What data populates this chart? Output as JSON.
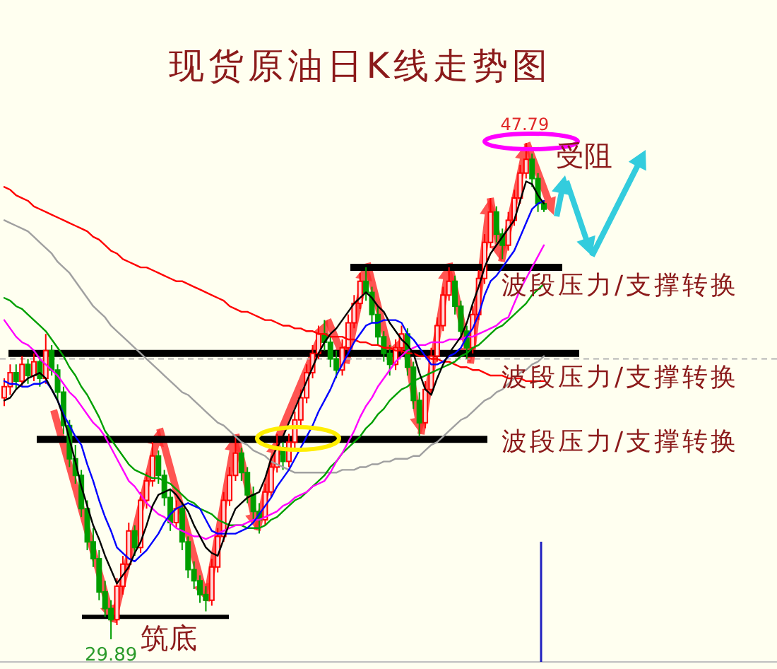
{
  "chart_data": {
    "type": "candlestick",
    "title": "现货原油日K线走势图",
    "tick_labels": false,
    "categories": [
      null,
      null,
      null,
      null,
      null,
      null,
      null,
      null,
      null,
      null,
      null,
      null,
      null,
      null,
      null,
      null,
      null,
      null,
      null,
      null,
      null,
      null,
      null,
      null,
      null,
      null,
      null,
      null,
      null,
      null,
      null,
      null,
      null,
      null,
      null,
      null,
      null,
      null,
      null,
      null,
      null,
      null,
      null,
      null,
      null,
      null,
      null,
      null,
      null,
      null,
      null,
      null,
      null,
      null,
      null,
      null,
      null,
      null,
      null,
      null,
      null,
      null,
      null,
      null,
      null,
      null,
      null,
      null,
      null,
      null,
      null,
      null,
      null,
      null,
      null,
      null,
      null,
      null,
      null,
      null,
      null,
      null,
      null,
      null,
      null,
      null,
      null,
      null,
      null,
      null,
      null,
      null
    ],
    "ohlc": [
      [
        38.6,
        39.3,
        38.3,
        39.0
      ],
      [
        39.0,
        39.8,
        38.7,
        39.5
      ],
      [
        39.5,
        39.8,
        38.9,
        39.2
      ],
      [
        39.2,
        40.1,
        39.0,
        39.8
      ],
      [
        39.8,
        40.0,
        39.1,
        39.4
      ],
      [
        39.4,
        40.2,
        39.2,
        39.9
      ],
      [
        39.9,
        40.1,
        39.0,
        39.3
      ],
      [
        39.3,
        40.9,
        39.1,
        40.3
      ],
      [
        40.3,
        40.5,
        39.4,
        39.6
      ],
      [
        39.6,
        39.8,
        38.5,
        38.8
      ],
      [
        38.8,
        39.0,
        37.3,
        37.6
      ],
      [
        37.6,
        37.8,
        36.1,
        36.4
      ],
      [
        36.4,
        36.9,
        35.5,
        35.8
      ],
      [
        35.8,
        36.0,
        34.3,
        34.6
      ],
      [
        34.6,
        34.9,
        33.1,
        33.4
      ],
      [
        33.4,
        33.9,
        32.5,
        32.8
      ],
      [
        32.8,
        33.1,
        31.3,
        31.6
      ],
      [
        31.6,
        32.0,
        30.7,
        31.0
      ],
      [
        31.0,
        31.3,
        29.89,
        30.6
      ],
      [
        30.6,
        32.1,
        30.4,
        31.8
      ],
      [
        31.8,
        32.9,
        31.5,
        32.6
      ],
      [
        32.6,
        34.1,
        32.4,
        33.8
      ],
      [
        33.8,
        34.0,
        32.9,
        33.2
      ],
      [
        33.2,
        35.2,
        33.0,
        34.9
      ],
      [
        34.9,
        35.9,
        34.6,
        35.6
      ],
      [
        35.6,
        37.0,
        35.4,
        36.5
      ],
      [
        36.5,
        36.7,
        35.5,
        35.8
      ],
      [
        35.8,
        36.0,
        34.7,
        35.0
      ],
      [
        35.0,
        35.3,
        33.8,
        34.1
      ],
      [
        34.1,
        34.9,
        33.9,
        34.6
      ],
      [
        34.6,
        34.8,
        33.1,
        33.4
      ],
      [
        33.4,
        33.6,
        32.1,
        32.4
      ],
      [
        32.4,
        32.7,
        31.7,
        32.0
      ],
      [
        32.0,
        32.2,
        31.2,
        31.5
      ],
      [
        31.5,
        31.8,
        30.9,
        31.3
      ],
      [
        31.3,
        32.8,
        31.1,
        32.5
      ],
      [
        32.5,
        33.9,
        32.3,
        33.6
      ],
      [
        33.6,
        35.2,
        33.4,
        34.9
      ],
      [
        34.9,
        36.1,
        34.7,
        35.8
      ],
      [
        35.8,
        37.2,
        35.6,
        36.6
      ],
      [
        36.6,
        36.8,
        35.6,
        35.9
      ],
      [
        35.9,
        36.1,
        34.8,
        35.1
      ],
      [
        35.1,
        35.4,
        34.2,
        34.5
      ],
      [
        34.5,
        34.8,
        33.7,
        34.2
      ],
      [
        34.2,
        35.5,
        34.0,
        35.2
      ],
      [
        35.2,
        36.4,
        35.0,
        36.1
      ],
      [
        36.1,
        37.3,
        35.9,
        36.8
      ],
      [
        36.8,
        37.0,
        36.0,
        36.3
      ],
      [
        36.3,
        37.3,
        36.1,
        37.0
      ],
      [
        37.0,
        38.1,
        36.8,
        37.8
      ],
      [
        37.8,
        38.9,
        37.6,
        38.6
      ],
      [
        38.6,
        39.8,
        38.4,
        39.5
      ],
      [
        39.5,
        40.5,
        39.3,
        40.2
      ],
      [
        40.2,
        41.2,
        40.0,
        40.9
      ],
      [
        40.9,
        41.4,
        40.3,
        40.6
      ],
      [
        40.6,
        40.8,
        39.7,
        40.0
      ],
      [
        40.0,
        40.3,
        39.3,
        39.6
      ],
      [
        39.6,
        40.7,
        39.4,
        40.4
      ],
      [
        40.4,
        41.6,
        40.2,
        41.3
      ],
      [
        41.3,
        42.3,
        41.1,
        42.0
      ],
      [
        42.0,
        43.1,
        41.8,
        42.8
      ],
      [
        42.8,
        43.3,
        42.1,
        42.4
      ],
      [
        42.4,
        42.6,
        41.3,
        41.6
      ],
      [
        41.6,
        41.9,
        40.5,
        40.8
      ],
      [
        40.8,
        41.0,
        39.9,
        40.2
      ],
      [
        40.2,
        40.5,
        39.4,
        39.8
      ],
      [
        39.8,
        40.7,
        39.6,
        40.4
      ],
      [
        40.4,
        41.2,
        40.2,
        40.9
      ],
      [
        40.9,
        41.1,
        39.4,
        39.7
      ],
      [
        39.7,
        39.9,
        38.2,
        38.5
      ],
      [
        38.5,
        38.8,
        37.2,
        37.7
      ],
      [
        37.7,
        39.2,
        37.5,
        38.9
      ],
      [
        38.9,
        40.4,
        38.7,
        40.1
      ],
      [
        40.1,
        41.5,
        39.9,
        41.2
      ],
      [
        41.2,
        42.6,
        41.0,
        42.3
      ],
      [
        42.3,
        43.3,
        42.1,
        42.8
      ],
      [
        42.8,
        43.0,
        41.6,
        41.9
      ],
      [
        41.9,
        42.1,
        40.7,
        41.0
      ],
      [
        41.0,
        41.2,
        40.0,
        40.4
      ],
      [
        40.4,
        41.9,
        40.2,
        41.6
      ],
      [
        41.6,
        43.2,
        41.4,
        42.9
      ],
      [
        42.9,
        44.5,
        42.7,
        44.2
      ],
      [
        44.2,
        45.8,
        44.0,
        45.3
      ],
      [
        45.3,
        45.5,
        44.2,
        44.5
      ],
      [
        44.5,
        44.7,
        43.6,
        44.1
      ],
      [
        44.1,
        45.3,
        43.9,
        45.0
      ],
      [
        45.0,
        46.1,
        44.8,
        45.8
      ],
      [
        45.8,
        47.0,
        45.6,
        46.7
      ],
      [
        46.7,
        47.79,
        46.5,
        47.2
      ],
      [
        47.2,
        47.4,
        46.2,
        46.5
      ],
      [
        46.5,
        46.7,
        45.3,
        45.6
      ],
      [
        45.6,
        45.7,
        45.3,
        45.4
      ]
    ],
    "series": [
      {
        "type": "line",
        "color": "#ff0000",
        "values": [
          46.2,
          46.1,
          45.9,
          45.8,
          45.7,
          45.5,
          45.4,
          45.3,
          45.2,
          45.1,
          45.0,
          44.9,
          44.8,
          44.7,
          44.6,
          44.4,
          44.3,
          44.1,
          43.9,
          43.8,
          43.6,
          43.5,
          43.4,
          43.3,
          43.3,
          43.2,
          43.1,
          43.0,
          42.9,
          42.8,
          42.8,
          42.7,
          42.6,
          42.5,
          42.4,
          42.3,
          42.2,
          42.1,
          41.9,
          41.8,
          41.7,
          41.7,
          41.6,
          41.5,
          41.4,
          41.4,
          41.3,
          41.2,
          41.2,
          41.1,
          41.1,
          41.0,
          41.0,
          40.9,
          40.9,
          40.8,
          40.8,
          40.8,
          40.7,
          40.7,
          40.6,
          40.6,
          40.5,
          40.5,
          40.4,
          40.4,
          40.3,
          40.3,
          40.2,
          40.2,
          40.1,
          40.1,
          40.0,
          40.0,
          39.9,
          39.9,
          39.8,
          39.7,
          39.7,
          39.6,
          39.6,
          39.5,
          39.4,
          39.4,
          39.4,
          39.3,
          39.3,
          39.3,
          39.2,
          39.2,
          39.2,
          39.2
        ]
      },
      {
        "type": "line",
        "color": "#a0a0a0",
        "values": [
          45.0,
          44.9,
          44.8,
          44.7,
          44.6,
          44.4,
          44.2,
          44.0,
          43.8,
          43.5,
          43.3,
          43.1,
          42.8,
          42.5,
          42.2,
          41.9,
          41.7,
          41.5,
          41.2,
          41.0,
          40.8,
          40.6,
          40.4,
          40.2,
          40.0,
          39.8,
          39.6,
          39.4,
          39.2,
          39.0,
          38.8,
          38.7,
          38.5,
          38.3,
          38.1,
          37.9,
          37.7,
          37.6,
          37.4,
          37.2,
          37.0,
          36.9,
          36.7,
          36.6,
          36.5,
          36.3,
          36.2,
          36.1,
          36.0,
          35.9,
          35.9,
          35.9,
          35.9,
          35.9,
          35.9,
          35.9,
          35.9,
          36.0,
          36.0,
          36.0,
          36.1,
          36.1,
          36.2,
          36.2,
          36.3,
          36.3,
          36.4,
          36.4,
          36.4,
          36.5,
          36.5,
          36.7,
          36.9,
          37.0,
          37.2,
          37.4,
          37.6,
          37.8,
          37.9,
          38.1,
          38.3,
          38.5,
          38.6,
          38.8,
          38.9,
          39.1,
          39.3,
          39.5,
          39.6,
          39.8,
          39.9,
          40.1
        ]
      },
      {
        "type": "line",
        "color": "#00a000",
        "values": [
          42.2,
          42.1,
          41.9,
          41.8,
          41.6,
          41.4,
          41.2,
          41.0,
          40.7,
          40.4,
          40.1,
          39.7,
          39.4,
          39.0,
          38.7,
          38.3,
          37.9,
          37.4,
          37.1,
          36.8,
          36.5,
          36.2,
          36.0,
          35.9,
          35.8,
          35.7,
          35.7,
          35.6,
          35.5,
          35.3,
          35.1,
          34.9,
          34.8,
          34.6,
          34.5,
          34.4,
          34.2,
          34.1,
          34.0,
          34.0,
          34.0,
          33.9,
          33.9,
          33.9,
          34.0,
          34.2,
          34.3,
          34.5,
          34.7,
          34.9,
          35.0,
          35.2,
          35.4,
          35.6,
          35.8,
          36.1,
          36.3,
          36.6,
          36.8,
          37.0,
          37.2,
          37.5,
          37.7,
          38.0,
          38.2,
          38.5,
          38.7,
          38.9,
          39.0,
          39.2,
          39.3,
          39.4,
          39.5,
          39.6,
          39.7,
          39.8,
          39.9,
          40.1,
          40.2,
          40.4,
          40.5,
          40.7,
          40.9,
          41.1,
          41.2,
          41.4,
          41.6,
          41.8,
          42.0,
          42.3,
          42.5,
          42.7
        ]
      },
      {
        "type": "line",
        "color": "#ff00ff",
        "values": [
          41.4,
          41.1,
          40.8,
          40.6,
          40.5,
          40.3,
          40.0,
          39.8,
          39.6,
          39.4,
          39.1,
          38.8,
          38.6,
          38.3,
          38.0,
          37.7,
          37.5,
          37.2,
          36.8,
          36.4,
          36.0,
          35.6,
          35.4,
          35.1,
          34.8,
          34.6,
          34.4,
          34.3,
          34.1,
          33.9,
          33.8,
          33.7,
          33.6,
          33.6,
          33.5,
          33.6,
          33.7,
          33.8,
          33.9,
          34.0,
          34.0,
          34.1,
          34.2,
          34.2,
          34.3,
          34.4,
          34.5,
          34.7,
          34.8,
          35.0,
          35.1,
          35.2,
          35.4,
          35.5,
          35.6,
          35.9,
          36.3,
          36.6,
          37.0,
          37.4,
          37.9,
          38.3,
          38.6,
          39.0,
          39.3,
          39.6,
          39.9,
          40.1,
          40.3,
          40.4,
          40.5,
          40.5,
          40.6,
          40.6,
          40.6,
          40.7,
          40.7,
          40.7,
          40.8,
          40.8,
          40.9,
          41.0,
          41.1,
          41.2,
          41.4,
          41.5,
          42.0,
          42.5,
          42.9,
          43.3,
          43.7,
          44.1
        ]
      },
      {
        "type": "line",
        "color": "#0000ff",
        "values": [
          39.2,
          39.1,
          39.1,
          39.0,
          39.0,
          39.1,
          39.1,
          39.2,
          38.9,
          38.5,
          38.0,
          37.6,
          37.2,
          36.9,
          36.2,
          35.6,
          34.9,
          34.3,
          33.8,
          33.2,
          33.0,
          32.8,
          32.7,
          32.9,
          33.1,
          33.4,
          33.7,
          34.1,
          34.4,
          34.6,
          34.7,
          34.8,
          34.7,
          34.6,
          34.2,
          33.8,
          33.7,
          33.7,
          33.7,
          33.7,
          33.8,
          33.9,
          34.1,
          34.4,
          34.7,
          35.0,
          35.4,
          35.7,
          36.0,
          36.4,
          36.8,
          37.2,
          37.6,
          38.1,
          38.5,
          38.9,
          39.4,
          39.8,
          40.2,
          40.6,
          40.9,
          41.2,
          41.3,
          41.3,
          41.4,
          41.4,
          41.4,
          41.3,
          40.9,
          40.7,
          40.4,
          40.1,
          39.8,
          39.8,
          39.9,
          40.1,
          40.2,
          40.4,
          40.8,
          41.1,
          41.6,
          42.3,
          42.8,
          43.0,
          43.3,
          43.6,
          43.9,
          44.4,
          44.9,
          45.4,
          45.6,
          45.7
        ]
      },
      {
        "type": "line",
        "color": "#000000",
        "values": [
          38.5,
          38.6,
          38.9,
          39.1,
          39.3,
          39.4,
          39.5,
          39.3,
          38.9,
          38.5,
          37.9,
          37.1,
          36.3,
          35.4,
          34.7,
          34.0,
          33.5,
          32.9,
          32.4,
          31.9,
          32.2,
          32.5,
          33.0,
          33.4,
          34.0,
          34.7,
          35.1,
          35.2,
          35.3,
          35.1,
          34.8,
          34.5,
          34.0,
          33.6,
          33.2,
          33.0,
          32.9,
          33.5,
          34.1,
          34.6,
          34.8,
          35.0,
          35.1,
          35.2,
          35.7,
          36.4,
          36.8,
          37.2,
          37.7,
          38.2,
          38.7,
          39.2,
          39.7,
          40.2,
          40.6,
          40.9,
          41.1,
          41.4,
          41.7,
          42.0,
          42.2,
          42.4,
          42.2,
          41.9,
          41.7,
          41.3,
          41.0,
          40.7,
          40.5,
          40.2,
          39.5,
          38.9,
          38.7,
          39.3,
          39.8,
          40.2,
          40.5,
          40.8,
          41.3,
          42.0,
          42.6,
          43.3,
          43.8,
          44.1,
          44.4,
          44.7,
          45.0,
          45.7,
          46.4,
          46.3,
          45.9,
          45.6
        ]
      }
    ],
    "ref_lines": [
      {
        "axis": "y",
        "value": 43.3,
        "label": "波段压力/支撑转换",
        "color": "#000000"
      },
      {
        "axis": "y",
        "value": 40.2,
        "label": "波段压力/支撑转换",
        "color": "#000000"
      },
      {
        "axis": "y",
        "value": 37.1,
        "label": "波段压力/支撑转换",
        "color": "#000000"
      },
      {
        "axis": "y",
        "value": 30.7,
        "color": "#000000"
      },
      {
        "axis": "y",
        "value": 40.0,
        "color": "#b4b4b4",
        "line_style": "dashed"
      }
    ],
    "annotations": [
      {
        "text": "47.79",
        "y": 47.79
      },
      "受阻",
      "筑底",
      {
        "text": "29.89",
        "y": 29.89
      }
    ]
  }
}
